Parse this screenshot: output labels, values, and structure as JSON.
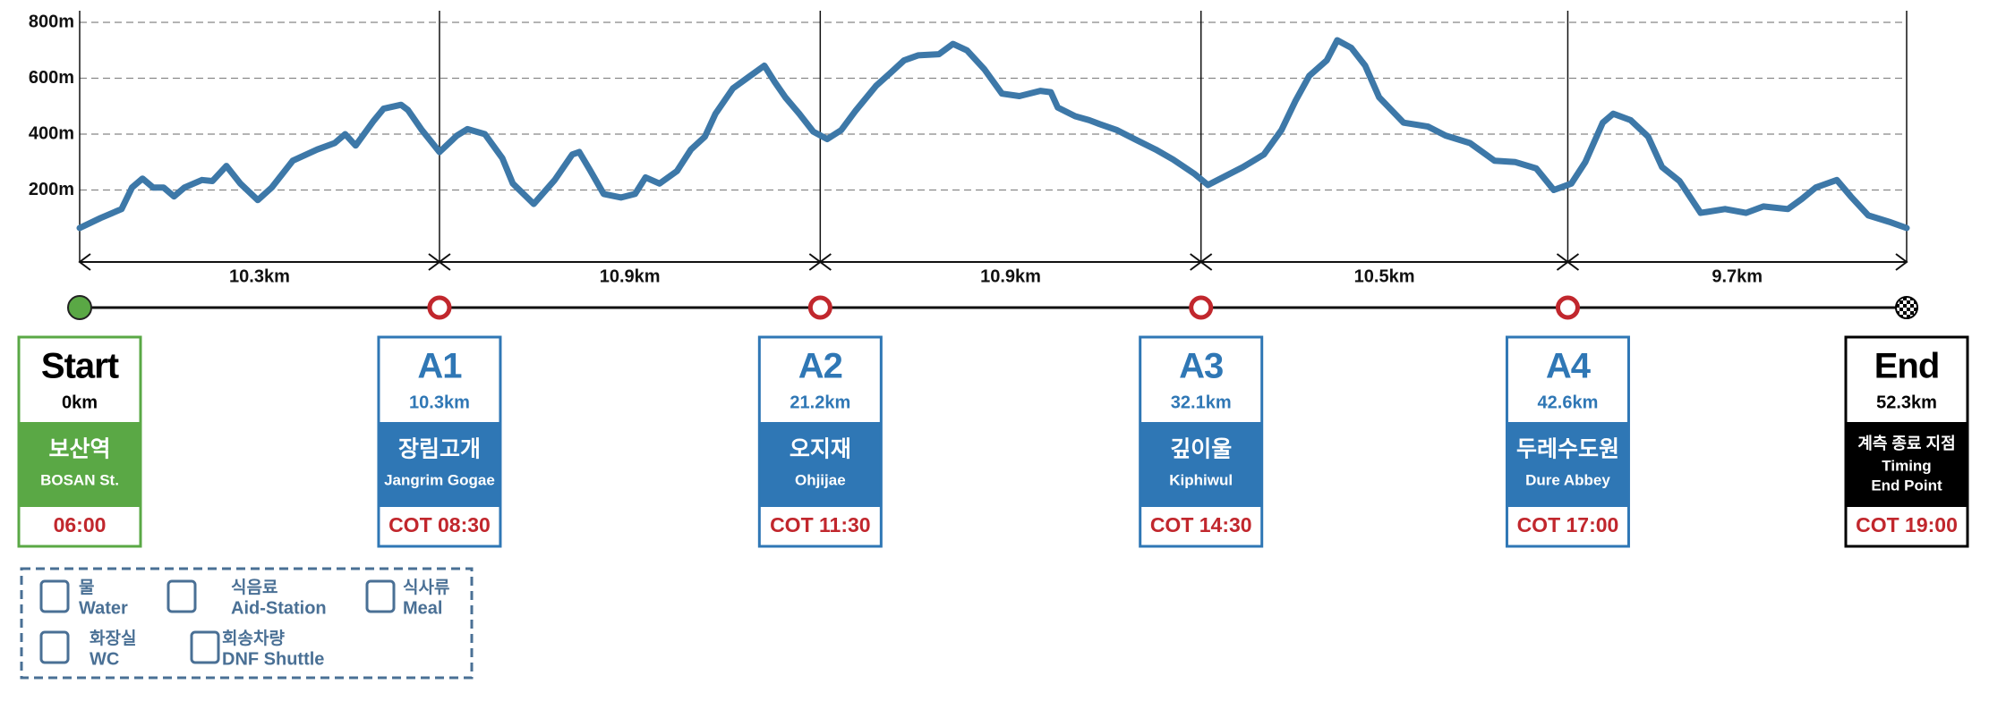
{
  "chart_data": {
    "type": "line",
    "x": [
      0,
      0.6,
      1.2,
      1.5,
      1.8,
      2.1,
      2.4,
      2.7,
      3.0,
      3.5,
      3.8,
      4.2,
      4.6,
      5.1,
      5.5,
      6.1,
      6.8,
      7.3,
      7.6,
      7.9,
      8.4,
      8.7,
      9.2,
      9.4,
      9.8,
      10.3,
      10.8,
      11.1,
      11.6,
      12.1,
      12.4,
      13.0,
      13.6,
      14.1,
      14.3,
      14.6,
      15.0,
      15.5,
      15.9,
      16.2,
      16.6,
      17.1,
      17.5,
      17.9,
      18.2,
      18.7,
      19.1,
      19.6,
      19.9,
      20.2,
      20.6,
      21.0,
      21.4,
      21.8,
      22.2,
      22.8,
      23.2,
      23.6,
      24.0,
      24.6,
      25.0,
      25.4,
      25.9,
      26.4,
      26.9,
      27.5,
      27.8,
      28.0,
      28.5,
      28.9,
      29.2,
      29.7,
      30.2,
      30.8,
      31.3,
      31.9,
      32.3,
      32.8,
      33.3,
      33.9,
      34.4,
      34.8,
      35.2,
      35.7,
      36.0,
      36.4,
      36.8,
      37.2,
      37.9,
      38.6,
      39.1,
      39.8,
      40.5,
      41.1,
      41.7,
      42.2,
      42.7,
      43.1,
      43.6,
      43.9,
      44.4,
      44.9,
      45.3,
      45.8,
      46.4,
      47.1,
      47.7,
      48.2,
      48.9,
      49.3,
      49.7,
      50.3,
      50.7,
      51.2,
      51.8,
      52.3
    ],
    "values": [
      64,
      100,
      132,
      209,
      241,
      209,
      209,
      177,
      209,
      236,
      232,
      286,
      223,
      164,
      209,
      305,
      345,
      368,
      400,
      359,
      445,
      491,
      505,
      486,
      414,
      336,
      395,
      418,
      400,
      314,
      223,
      150,
      236,
      327,
      336,
      273,
      186,
      173,
      186,
      245,
      223,
      268,
      345,
      391,
      473,
      564,
      600,
      645,
      586,
      532,
      473,
      409,
      382,
      414,
      482,
      573,
      618,
      664,
      682,
      686,
      723,
      700,
      632,
      545,
      536,
      555,
      550,
      495,
      464,
      450,
      436,
      414,
      382,
      345,
      309,
      259,
      218,
      250,
      282,
      327,
      414,
      518,
      609,
      664,
      736,
      709,
      645,
      532,
      441,
      427,
      395,
      368,
      305,
      300,
      277,
      200,
      223,
      300,
      441,
      473,
      450,
      391,
      282,
      232,
      118,
      132,
      118,
      141,
      132,
      168,
      209,
      236,
      177,
      109,
      86,
      64
    ],
    "color": "#3d78a8",
    "xlim": [
      0,
      52.3
    ],
    "ylim": [
      0,
      800
    ],
    "yticks": [
      {
        "value": 200,
        "label": "200m"
      },
      {
        "value": 400,
        "label": "400m"
      },
      {
        "value": 600,
        "label": "600m"
      },
      {
        "value": 800,
        "label": "800m"
      }
    ],
    "grid": true,
    "segments": [
      {
        "value": 10.3,
        "label": "10.3km"
      },
      {
        "value": 10.9,
        "label": "10.9km"
      },
      {
        "value": 10.9,
        "label": "10.9km"
      },
      {
        "value": 10.5,
        "label": "10.5km"
      },
      {
        "value": 9.7,
        "label": "9.7km"
      }
    ]
  },
  "stations": [
    {
      "name": "Start",
      "km": {
        "value": 0,
        "label": "0km"
      },
      "ko": "보산역",
      "en": [
        "BOSAN St."
      ],
      "time": "06:00",
      "color": "#5aa845",
      "kind": "start"
    },
    {
      "name": "A1",
      "km": {
        "value": 10.3,
        "label": "10.3km"
      },
      "ko": "장림고개",
      "en": [
        "Jangrim Gogae"
      ],
      "time": "COT 08:30",
      "color": "#2f77b5",
      "kind": "aid"
    },
    {
      "name": "A2",
      "km": {
        "value": 21.2,
        "label": "21.2km"
      },
      "ko": "오지재",
      "en": [
        "Ohjijae"
      ],
      "time": "COT 11:30",
      "color": "#2f77b5",
      "kind": "aid"
    },
    {
      "name": "A3",
      "km": {
        "value": 32.1,
        "label": "32.1km"
      },
      "ko": "깊이울",
      "en": [
        "Kiphiwul"
      ],
      "time": "COT 14:30",
      "color": "#2f77b5",
      "kind": "aid"
    },
    {
      "name": "A4",
      "km": {
        "value": 42.6,
        "label": "42.6km"
      },
      "ko": "두레수도원",
      "en": [
        "Dure Abbey"
      ],
      "time": "COT 17:00",
      "color": "#2f77b5",
      "kind": "aid"
    },
    {
      "name": "End",
      "km": {
        "value": 52.3,
        "label": "52.3km"
      },
      "ko": "계측 종료 지점",
      "en": [
        "Timing",
        "End Point"
      ],
      "time": "COT 19:00",
      "color": "#000000",
      "kind": "end"
    }
  ],
  "legend": [
    {
      "ko": "물",
      "en": "Water"
    },
    {
      "ko": "식음료",
      "en": "Aid-Station"
    },
    {
      "ko": "식사류",
      "en": "Meal"
    },
    {
      "ko": "화장실",
      "en": "WC"
    },
    {
      "ko": "회송차량",
      "en": "DNF Shuttle"
    }
  ]
}
